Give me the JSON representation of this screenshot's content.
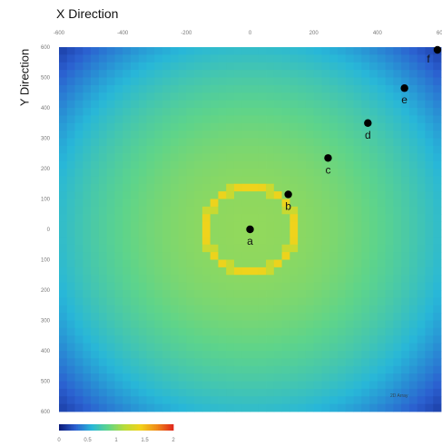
{
  "chart_data": {
    "type": "heatmap",
    "xlabel": "X Direction",
    "ylabel": "Y Direction",
    "x_ticks": [
      "-600",
      "-400",
      "-200",
      "0",
      "200",
      "400",
      "600"
    ],
    "y_ticks": [
      "600",
      "500",
      "400",
      "300",
      "200",
      "100",
      "0",
      "100",
      "200",
      "300",
      "400",
      "500",
      "600"
    ],
    "xlim": [
      -600,
      600
    ],
    "ylim": [
      -600,
      600
    ],
    "colorbar": {
      "ticks": [
        "0",
        "0.5",
        "1",
        "1.5",
        "2"
      ],
      "range": [
        0,
        2
      ],
      "colors": [
        "#0b1a78",
        "#2b5fd0",
        "#28b7d8",
        "#5ed48a",
        "#b8dc3a",
        "#f2d21a",
        "#f08a1a",
        "#e0261c"
      ]
    },
    "ring": {
      "radius": 140,
      "value": 1.45
    },
    "points": [
      {
        "label": "a",
        "x": 0,
        "y": 0
      },
      {
        "label": "b",
        "x": 120,
        "y": 115
      },
      {
        "label": "c",
        "x": 245,
        "y": 235
      },
      {
        "label": "d",
        "x": 370,
        "y": 350
      },
      {
        "label": "e",
        "x": 485,
        "y": 465
      },
      {
        "label": "f",
        "x": 600,
        "y": 595
      }
    ],
    "annotation": "2D Array"
  }
}
